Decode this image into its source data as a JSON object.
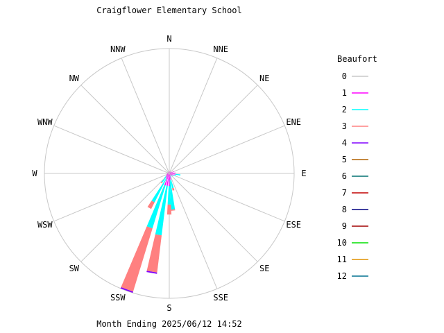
{
  "chart_data": {
    "type": "wind-rose",
    "title": "Craigflower Elementary School",
    "footer": "Month Ending 2025/06/12 14:52",
    "direction_labels": [
      "N",
      "NNE",
      "NE",
      "ENE",
      "E",
      "ESE",
      "SE",
      "SSE",
      "S",
      "SSW",
      "SW",
      "WSW",
      "W",
      "WNW",
      "NW",
      "NNW"
    ],
    "legend": {
      "title": "Beaufort",
      "entries": [
        {
          "label": "0",
          "color": "#c8c8c8"
        },
        {
          "label": "1",
          "color": "#ff00ff"
        },
        {
          "label": "2",
          "color": "#00ffff"
        },
        {
          "label": "3",
          "color": "#ff8080"
        },
        {
          "label": "4",
          "color": "#8000ff"
        },
        {
          "label": "5",
          "color": "#b06000"
        },
        {
          "label": "6",
          "color": "#007070"
        },
        {
          "label": "7",
          "color": "#c00000"
        },
        {
          "label": "8",
          "color": "#000080"
        },
        {
          "label": "9",
          "color": "#a00000"
        },
        {
          "label": "10",
          "color": "#00e000"
        },
        {
          "label": "11",
          "color": "#e09000"
        },
        {
          "label": "12",
          "color": "#007090"
        }
      ]
    },
    "grid": "radial spokes every 22.5 degrees and outer circle",
    "petal_width_deg": 6,
    "petals": [
      {
        "dir": 200,
        "cumulative": [
          0.01,
          0.1,
          0.46,
          0.99,
          1.0
        ]
      },
      {
        "dir": 190,
        "cumulative": [
          0.01,
          0.1,
          0.5,
          0.8,
          0.81
        ]
      },
      {
        "dir": 180,
        "cumulative": [
          0.01,
          0.1,
          0.25,
          0.33
        ]
      },
      {
        "dir": 210,
        "cumulative": [
          0.01,
          0.05,
          0.26,
          0.32
        ]
      },
      {
        "dir": 174,
        "cumulative": [
          0.01,
          0.05,
          0.29,
          0.3
        ]
      },
      {
        "dir": 220,
        "cumulative": [
          0.01,
          0.04,
          0.09,
          0.1
        ]
      },
      {
        "dir": 228,
        "cumulative": [
          0.01,
          0.03,
          0.05
        ]
      },
      {
        "dir": 236,
        "cumulative": [
          0.01,
          0.03
        ]
      },
      {
        "dir": 244,
        "cumulative": [
          0.01,
          0.02
        ]
      },
      {
        "dir": 252,
        "cumulative": [
          0.01,
          0.02
        ]
      },
      {
        "dir": 260,
        "cumulative": [
          0.01,
          0.02
        ]
      },
      {
        "dir": 268,
        "cumulative": [
          0.005,
          0.015
        ]
      },
      {
        "dir": 276,
        "cumulative": [
          0.005,
          0.015
        ]
      },
      {
        "dir": 290,
        "cumulative": [
          0.005,
          0.012
        ]
      },
      {
        "dir": 310,
        "cumulative": [
          0.005,
          0.012
        ]
      },
      {
        "dir": 330,
        "cumulative": [
          0.005,
          0.012
        ]
      },
      {
        "dir": 350,
        "cumulative": [
          0.005,
          0.015
        ]
      },
      {
        "dir": 10,
        "cumulative": [
          0.005,
          0.015
        ]
      },
      {
        "dir": 30,
        "cumulative": [
          0.005,
          0.015
        ]
      },
      {
        "dir": 50,
        "cumulative": [
          0.005,
          0.02
        ]
      },
      {
        "dir": 70,
        "cumulative": [
          0.005,
          0.04
        ]
      },
      {
        "dir": 84,
        "cumulative": [
          0.005,
          0.05
        ]
      },
      {
        "dir": 98,
        "cumulative": [
          0.005,
          0.05,
          0.09
        ]
      },
      {
        "dir": 110,
        "cumulative": [
          0.005,
          0.04,
          0.06
        ]
      },
      {
        "dir": 124,
        "cumulative": [
          0.005,
          0.03,
          0.04
        ]
      },
      {
        "dir": 140,
        "cumulative": [
          0.005,
          0.02,
          0.03
        ]
      },
      {
        "dir": 156,
        "cumulative": [
          0.005,
          0.02,
          0.04
        ]
      },
      {
        "dir": 166,
        "cumulative": [
          0.005,
          0.05,
          0.12,
          0.14
        ]
      }
    ]
  }
}
